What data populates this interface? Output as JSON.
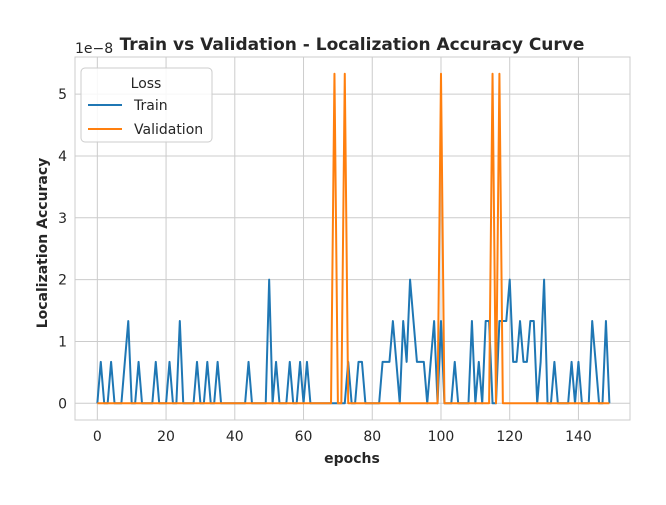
{
  "chart_data": {
    "type": "line",
    "title": "Train vs Validation - Localization Accuracy Curve",
    "xlabel": "epochs",
    "ylabel": "Localization Accuracy",
    "y_offset_label": "1e−8",
    "xlim": [
      -6.5,
      155
    ],
    "ylim": [
      -0.27,
      5.6
    ],
    "x_ticks": [
      0,
      20,
      40,
      60,
      80,
      100,
      120,
      140
    ],
    "y_ticks": [
      0,
      1,
      2,
      3,
      4,
      5
    ],
    "grid": true,
    "legend": {
      "title": "Loss",
      "placement": "top-left"
    },
    "x_start": 0,
    "series": [
      {
        "name": "Train",
        "color": "#1f77b4",
        "values": [
          0,
          0.67,
          0,
          0,
          0.67,
          0,
          0,
          0,
          0.67,
          1.33,
          0,
          0,
          0.67,
          0,
          0,
          0,
          0,
          0.67,
          0,
          0,
          0,
          0.67,
          0,
          0,
          1.33,
          0,
          0,
          0,
          0,
          0.67,
          0,
          0,
          0.67,
          0,
          0,
          0.67,
          0,
          0,
          0,
          0,
          0,
          0,
          0,
          0,
          0.67,
          0,
          0,
          0,
          0,
          0,
          2.0,
          0,
          0.67,
          0,
          0,
          0,
          0.67,
          0,
          0,
          0.67,
          0,
          0.67,
          0,
          0,
          0,
          0,
          0,
          0,
          0,
          0,
          0,
          0,
          0,
          0.67,
          0,
          0,
          0.67,
          0.67,
          0,
          0,
          0,
          0,
          0,
          0.67,
          0.67,
          0.67,
          1.33,
          0.67,
          0,
          1.33,
          0.67,
          2.0,
          1.33,
          0.67,
          0.67,
          0.67,
          0,
          0.67,
          1.33,
          0,
          1.33,
          0,
          0,
          0,
          0.67,
          0,
          0,
          0,
          0,
          1.33,
          0,
          0.67,
          0,
          1.33,
          1.33,
          0,
          0,
          1.33,
          1.33,
          1.33,
          2.0,
          0.67,
          0.67,
          1.33,
          0.67,
          0.67,
          1.33,
          1.33,
          0,
          0.67,
          2.0,
          0,
          0,
          0.67,
          0,
          0,
          0,
          0,
          0.67,
          0,
          0.67,
          0,
          0,
          0,
          1.33,
          0.67,
          0,
          0,
          1.33,
          0
        ]
      },
      {
        "name": "Validation",
        "color": "#ff7f0e",
        "values": [
          0,
          0,
          0,
          0,
          0,
          0,
          0,
          0,
          0,
          0,
          0,
          0,
          0,
          0,
          0,
          0,
          0,
          0,
          0,
          0,
          0,
          0,
          0,
          0,
          0,
          0,
          0,
          0,
          0,
          0,
          0,
          0,
          0,
          0,
          0,
          0,
          0,
          0,
          0,
          0,
          0,
          0,
          0,
          0,
          0,
          0,
          0,
          0,
          0,
          0,
          0,
          0,
          0,
          0,
          0,
          0,
          0,
          0,
          0,
          0,
          0,
          0,
          0,
          0,
          0,
          0,
          0,
          0,
          0,
          5.33,
          0,
          0,
          5.33,
          0,
          0,
          0,
          0,
          0,
          0,
          0,
          0,
          0,
          0,
          0,
          0,
          0,
          0,
          0,
          0,
          0,
          0,
          0,
          0,
          0,
          0,
          0,
          0,
          0,
          0,
          0,
          5.33,
          0,
          0,
          0,
          0,
          0,
          0,
          0,
          0,
          0,
          0,
          0,
          0,
          0,
          0,
          5.33,
          0,
          5.33,
          0,
          0,
          0,
          0,
          0,
          0,
          0,
          0,
          0,
          0,
          0,
          0,
          0,
          0,
          0,
          0,
          0,
          0,
          0,
          0,
          0,
          0,
          0,
          0,
          0,
          0,
          0,
          0,
          0,
          0,
          0,
          0
        ]
      }
    ]
  }
}
